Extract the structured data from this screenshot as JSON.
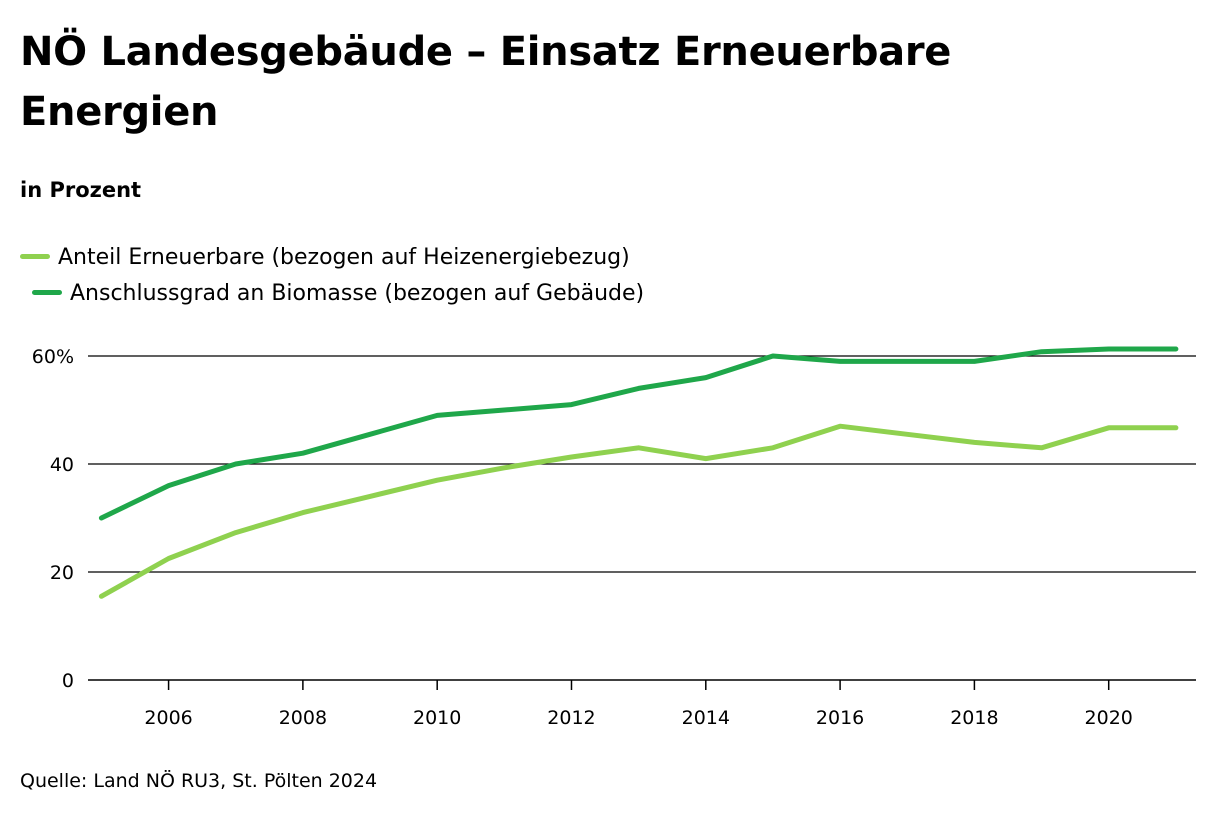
{
  "title": "NÖ Landesgebäude – Einsatz Erneuerbare Energien",
  "subtitle": "in Prozent",
  "source": "Quelle: Land NÖ RU3, St. Pölten 2024",
  "colors": {
    "series_light": "#8fd14f",
    "series_dark": "#1fa74a",
    "grid": "#000000"
  },
  "chart_data": {
    "type": "line",
    "x": [
      2005,
      2006,
      2007,
      2008,
      2009,
      2010,
      2011,
      2012,
      2013,
      2014,
      2015,
      2016,
      2017,
      2018,
      2019,
      2020,
      2021
    ],
    "series": [
      {
        "name": "Anteil Erneuerbare (bezogen auf Heizenergiebezug)",
        "color": "#8fd14f",
        "values": [
          15.5,
          22.5,
          27.3,
          31,
          34,
          37,
          39.3,
          41.3,
          43,
          41,
          43,
          47,
          45.5,
          44,
          43,
          46.7,
          46.7
        ]
      },
      {
        "name": "Anschlussgrad an Biomasse (bezogen auf Gebäude)",
        "color": "#1fa74a",
        "values": [
          30,
          36,
          40,
          42,
          45.5,
          49,
          50,
          51,
          54,
          56,
          60,
          59,
          59,
          59,
          60.8,
          61.3,
          61.3
        ]
      }
    ],
    "y_ticks": [
      "0",
      "20",
      "40",
      "60%"
    ],
    "y_tick_values": [
      0,
      20,
      40,
      60
    ],
    "x_ticks": [
      2006,
      2008,
      2010,
      2012,
      2014,
      2016,
      2018,
      2020
    ],
    "ylim": [
      0,
      60
    ],
    "xlim": [
      2004.8,
      2021.3
    ],
    "grid": "horizontal",
    "legend_position": "top-left"
  }
}
